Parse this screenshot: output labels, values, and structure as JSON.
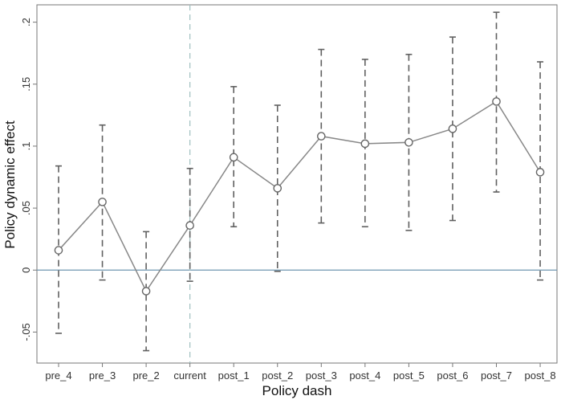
{
  "chart_data": {
    "type": "line",
    "title": "",
    "xlabel": "Policy dash",
    "ylabel": "Policy dynamic effect",
    "categories": [
      "pre_4",
      "pre_3",
      "pre_2",
      "current",
      "post_1",
      "post_2",
      "post_3",
      "post_4",
      "post_5",
      "post_6",
      "post_7",
      "post_8"
    ],
    "series": [
      {
        "values": [
          0.016,
          0.055,
          -0.017,
          0.036,
          0.091,
          0.066,
          0.108,
          0.102,
          0.103,
          0.114,
          0.136,
          0.079
        ],
        "ci_lower": [
          -0.051,
          -0.008,
          -0.065,
          -0.009,
          0.035,
          -0.001,
          0.038,
          0.035,
          0.032,
          0.04,
          0.063,
          -0.008
        ],
        "ci_upper": [
          0.084,
          0.117,
          0.031,
          0.082,
          0.148,
          0.133,
          0.178,
          0.17,
          0.174,
          0.188,
          0.208,
          0.168
        ]
      }
    ],
    "ylim": [
      -0.075,
      0.214
    ],
    "yticks": [
      -0.05,
      0,
      0.05,
      0.1,
      0.15,
      0.2
    ],
    "ytick_labels": [
      "-.05",
      "0",
      ".05",
      ".1",
      ".15",
      ".2"
    ],
    "reference_line_y": 0,
    "event_line_category": "current",
    "grid": false,
    "colors": {
      "series": "#888888",
      "marker": "#666666",
      "ci": "#606060",
      "zero_line": "#6f96b0",
      "event_line": "#9fc0c0",
      "axis": "#777777"
    }
  }
}
